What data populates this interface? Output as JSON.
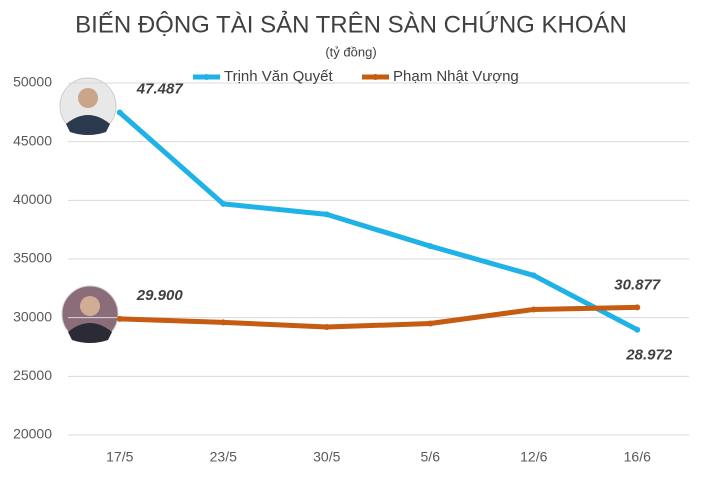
{
  "chart_data": {
    "type": "line",
    "title": "BIẾN ĐỘNG TÀI SẢN TRÊN SÀN CHỨNG KHOÁN",
    "subtitle": "(tỷ đồng)",
    "categories": [
      "17/5",
      "23/5",
      "30/5",
      "5/6",
      "12/6",
      "16/6"
    ],
    "series": [
      {
        "name": "Trịnh Văn Quyết",
        "color": "#1fb2e6",
        "values": [
          47487,
          39700,
          38800,
          36100,
          33600,
          28972
        ],
        "value_labels": [
          "47.487",
          null,
          null,
          null,
          null,
          "28.972"
        ]
      },
      {
        "name": "Phạm Nhật Vượng",
        "color": "#c65b12",
        "values": [
          29900,
          29600,
          29200,
          29500,
          30700,
          30877
        ],
        "value_labels": [
          "29.900",
          null,
          null,
          null,
          null,
          "30.877"
        ]
      }
    ],
    "ylim": [
      20000,
      50000
    ],
    "yticks": [
      20000,
      25000,
      30000,
      35000,
      40000,
      45000,
      50000
    ],
    "grid": true,
    "legend": "top"
  }
}
